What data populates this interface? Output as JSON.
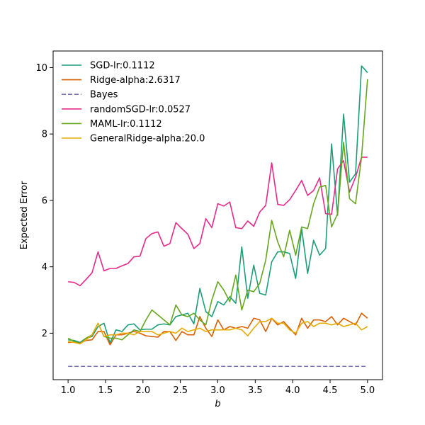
{
  "chart_data": {
    "type": "line",
    "xlabel": "b",
    "ylabel": "Expected Error",
    "xlim": [
      0.8,
      5.2
    ],
    "ylim": [
      0.6,
      10.5
    ],
    "xticks": [
      1.0,
      1.5,
      2.0,
      2.5,
      3.0,
      3.5,
      4.0,
      4.5,
      5.0
    ],
    "xtick_labels": [
      "1.0",
      "1.5",
      "2.0",
      "2.5",
      "3.0",
      "3.5",
      "4.0",
      "4.5",
      "5.0"
    ],
    "yticks": [
      2,
      4,
      6,
      8,
      10
    ],
    "ytick_labels": [
      "2",
      "4",
      "6",
      "8",
      "10"
    ],
    "legend_position": "top-left",
    "grid": false,
    "x": [
      1.0,
      1.08,
      1.16,
      1.24,
      1.32,
      1.4,
      1.48,
      1.56,
      1.64,
      1.72,
      1.8,
      1.88,
      1.96,
      2.04,
      2.12,
      2.2,
      2.28,
      2.36,
      2.44,
      2.52,
      2.6,
      2.68,
      2.76,
      2.84,
      2.92,
      3.0,
      3.08,
      3.16,
      3.24,
      3.32,
      3.4,
      3.48,
      3.56,
      3.64,
      3.72,
      3.8,
      3.88,
      3.96,
      4.04,
      4.12,
      4.2,
      4.28,
      4.36,
      4.44,
      4.52,
      4.6,
      4.68,
      4.76,
      4.84,
      4.92,
      5.0
    ],
    "series": [
      {
        "name": "SGD-lr:0.1112",
        "color": "#1b9e77",
        "dash": "solid",
        "values": [
          1.8,
          1.78,
          1.72,
          1.85,
          1.9,
          2.2,
          2.3,
          1.7,
          2.1,
          2.05,
          2.25,
          2.28,
          2.1,
          2.12,
          2.12,
          2.25,
          2.28,
          2.25,
          2.5,
          2.55,
          2.6,
          2.28,
          3.35,
          2.65,
          2.5,
          2.95,
          2.85,
          3.1,
          2.9,
          4.6,
          3.05,
          4.05,
          3.2,
          3.15,
          4.15,
          4.45,
          4.45,
          4.4,
          3.65,
          5.15,
          3.8,
          4.8,
          4.35,
          4.55,
          7.7,
          5.55,
          8.6,
          6.55,
          6.8,
          10.05,
          9.85
        ]
      },
      {
        "name": "Ridge-alpha:2.6317",
        "color": "#d95f02",
        "dash": "solid",
        "values": [
          1.72,
          1.73,
          1.7,
          1.78,
          1.8,
          2.05,
          2.05,
          1.65,
          1.95,
          1.95,
          2.0,
          2.05,
          2.0,
          1.92,
          1.9,
          1.88,
          2.05,
          2.05,
          1.78,
          2.05,
          1.95,
          1.95,
          2.5,
          2.15,
          1.9,
          2.4,
          2.1,
          2.2,
          2.15,
          2.2,
          2.15,
          2.45,
          2.4,
          2.05,
          2.45,
          2.25,
          2.35,
          2.15,
          1.95,
          2.45,
          2.15,
          2.4,
          2.4,
          2.35,
          2.5,
          2.25,
          2.45,
          2.35,
          2.25,
          2.6,
          2.45
        ]
      },
      {
        "name": "Bayes",
        "color": "#7570b3",
        "dash": "dashed",
        "values": [
          1.0,
          1.0,
          1.0,
          1.0,
          1.0,
          1.0,
          1.0,
          1.0,
          1.0,
          1.0,
          1.0,
          1.0,
          1.0,
          1.0,
          1.0,
          1.0,
          1.0,
          1.0,
          1.0,
          1.0,
          1.0,
          1.0,
          1.0,
          1.0,
          1.0,
          1.0,
          1.0,
          1.0,
          1.0,
          1.0,
          1.0,
          1.0,
          1.0,
          1.0,
          1.0,
          1.0,
          1.0,
          1.0,
          1.0,
          1.0,
          1.0,
          1.0,
          1.0,
          1.0,
          1.0,
          1.0,
          1.0,
          1.0,
          1.0,
          1.0,
          1.0
        ]
      },
      {
        "name": "randomSGD-lr:0.0527",
        "color": "#e7298a",
        "dash": "solid",
        "values": [
          3.55,
          3.53,
          3.43,
          3.62,
          3.82,
          4.45,
          3.88,
          3.95,
          3.95,
          4.03,
          4.1,
          4.3,
          4.32,
          4.85,
          5.0,
          5.05,
          4.62,
          4.7,
          5.33,
          5.15,
          4.98,
          4.55,
          4.7,
          5.45,
          5.18,
          5.9,
          5.83,
          5.95,
          5.18,
          5.15,
          5.38,
          5.22,
          5.65,
          5.85,
          7.13,
          5.88,
          5.85,
          6.02,
          6.3,
          6.6,
          6.15,
          6.3,
          6.68,
          5.6,
          5.58,
          6.95,
          7.2,
          6.25,
          6.7,
          7.3,
          7.3
        ]
      },
      {
        "name": "MAML-lr:0.1112",
        "color": "#66a61e",
        "dash": "solid",
        "values": [
          1.85,
          1.75,
          1.68,
          1.85,
          1.95,
          2.3,
          1.9,
          1.85,
          1.85,
          1.8,
          1.95,
          2.1,
          2.05,
          2.4,
          2.7,
          2.55,
          2.4,
          2.25,
          2.85,
          2.55,
          2.5,
          2.6,
          2.4,
          2.25,
          3.0,
          3.55,
          3.3,
          2.95,
          3.75,
          2.7,
          3.3,
          3.25,
          3.5,
          4.2,
          5.4,
          4.75,
          4.3,
          5.1,
          4.35,
          5.2,
          5.15,
          5.9,
          6.4,
          6.45,
          5.2,
          5.6,
          7.75,
          6.05,
          5.9,
          7.3,
          9.65
        ]
      },
      {
        "name": "GeneralRidge-alpha:20.0",
        "color": "#e6ab02",
        "dash": "solid",
        "values": [
          1.75,
          1.72,
          1.68,
          1.8,
          1.95,
          2.3,
          1.9,
          1.95,
          1.95,
          2.0,
          2.0,
          1.95,
          2.05,
          2.05,
          2.05,
          1.95,
          2.0,
          2.05,
          2.0,
          2.15,
          2.05,
          2.1,
          2.15,
          2.05,
          2.1,
          2.1,
          2.1,
          2.1,
          2.15,
          2.1,
          1.92,
          2.15,
          2.35,
          2.35,
          2.45,
          2.3,
          2.3,
          2.1,
          2.0,
          2.3,
          2.35,
          2.2,
          2.3,
          2.3,
          2.25,
          2.3,
          2.2,
          2.25,
          2.3,
          2.1,
          2.2
        ]
      }
    ]
  }
}
